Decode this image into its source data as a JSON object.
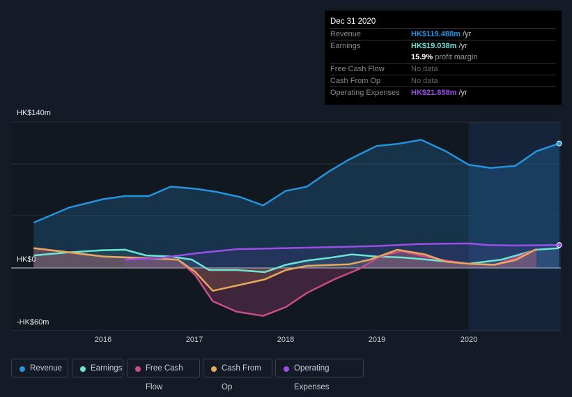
{
  "chart_data": {
    "type": "line",
    "ylabels": [
      "HK$140m",
      "HK$0",
      "-HK$60m"
    ],
    "ylim": [
      -60,
      140
    ],
    "xticks": [
      "2016",
      "2017",
      "2018",
      "2019",
      "2020"
    ],
    "xlim": [
      2015.0,
      2021.0
    ],
    "forecast_start": 2020.0,
    "series": [
      {
        "name": "Revenue",
        "color": "#2394df",
        "x": [
          2015.24,
          2015.63,
          2016,
          2016.24,
          2016.5,
          2016.74,
          2017.01,
          2017.24,
          2017.5,
          2017.75,
          2018,
          2018.23,
          2018.46,
          2018.69,
          2018.99,
          2019.22,
          2019.48,
          2019.75,
          2020,
          2020.24,
          2020.51,
          2020.74,
          2020.99
        ],
        "values": [
          43.5,
          58,
          66,
          69,
          69,
          78,
          76,
          73,
          68,
          60,
          74,
          78,
          92,
          104,
          117,
          119,
          123,
          112,
          99,
          96,
          98,
          112,
          119.5
        ]
      },
      {
        "name": "Earnings",
        "color": "#6ce5d4",
        "x": [
          2015.24,
          2015.63,
          2016,
          2016.24,
          2016.47,
          2016.74,
          2016.97,
          2017.16,
          2017.46,
          2017.77,
          2018,
          2018.23,
          2018.46,
          2018.72,
          2018.99,
          2019.29,
          2019.6,
          2020,
          2020.36,
          2020.74,
          2020.99
        ],
        "values": [
          12,
          15,
          17,
          17.5,
          12,
          11,
          8,
          -2,
          -2,
          -4,
          3,
          7,
          9.5,
          13,
          11,
          10,
          7.5,
          4,
          8,
          17.5,
          19
        ]
      },
      {
        "name": "Free Cash Flow",
        "color": "#c94d8c",
        "x": [
          2015.24,
          2015.63,
          2016,
          2016.51,
          2016.82,
          2017.01,
          2017.2,
          2017.46,
          2017.75,
          2018,
          2018.23,
          2018.53,
          2018.8,
          2019.03,
          2019.26,
          2019.52,
          2019.75,
          2020,
          2020.28,
          2020.51,
          2020.74
        ],
        "values": [
          19,
          15,
          11,
          9.5,
          8,
          -7,
          -32,
          -42,
          -46,
          -37.5,
          -24,
          -11,
          -1,
          11,
          16,
          11,
          7,
          4,
          3,
          9.5,
          18
        ]
      },
      {
        "name": "Cash From Op",
        "color": "#e8a95b",
        "x": [
          2015.24,
          2016,
          2016.82,
          2017.01,
          2017.2,
          2017.46,
          2017.77,
          2018,
          2018.23,
          2018.69,
          2018.92,
          2019.22,
          2019.52,
          2019.75,
          2020,
          2020.28,
          2020.51,
          2020.74
        ],
        "values": [
          19,
          11,
          8,
          -4,
          -22,
          -17,
          -11,
          -2,
          2,
          3.5,
          8,
          17.5,
          13,
          6,
          4,
          3,
          7.5,
          18
        ]
      },
      {
        "name": "Operating Expenses",
        "color": "#9b4fe8",
        "x": [
          2016.24,
          2016.63,
          2017.01,
          2017.46,
          2018,
          2018.53,
          2018.99,
          2019.45,
          2020,
          2020.21,
          2020.51,
          2020.99
        ],
        "values": [
          8,
          9.5,
          14,
          18,
          19,
          20,
          21,
          23,
          23.5,
          22,
          21.5,
          22
        ]
      }
    ]
  },
  "tooltip": {
    "date": "Dec 31 2020",
    "rows": [
      {
        "label": "Revenue",
        "value": "HK$119.488m",
        "suffix": " /yr"
      },
      {
        "label": "Earnings",
        "value": "HK$19.038m",
        "suffix": " /yr"
      },
      {
        "label": "",
        "value": "15.9%",
        "suffix": " profit margin"
      },
      {
        "label": "Free Cash Flow",
        "value": "No data",
        "suffix": ""
      },
      {
        "label": "Cash From Op",
        "value": "No data",
        "suffix": ""
      },
      {
        "label": "Operating Expenses",
        "value": "HK$21.858m",
        "suffix": " /yr"
      }
    ]
  },
  "legend": [
    "Revenue",
    "Earnings",
    "Free Cash Flow",
    "Cash From Op",
    "Operating Expenses"
  ]
}
